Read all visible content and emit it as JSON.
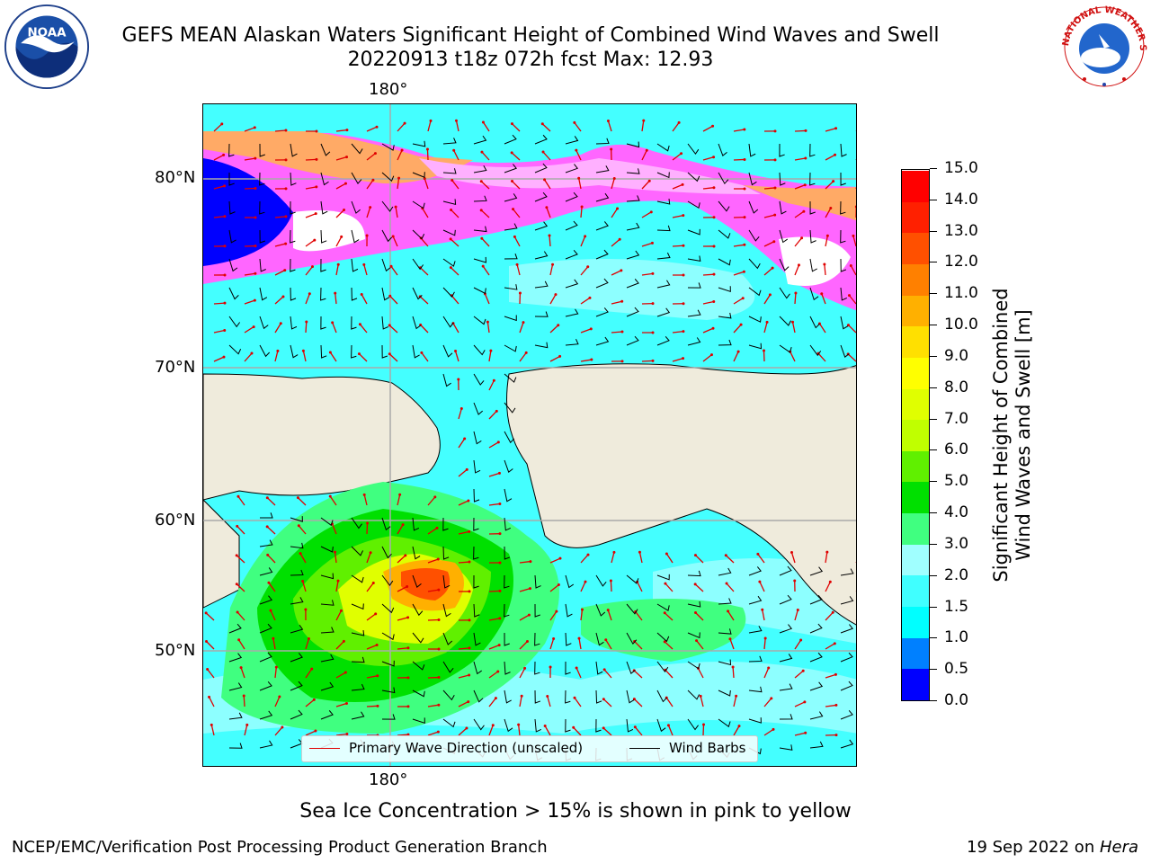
{
  "title": {
    "line1": "GEFS MEAN Alaskan Waters Significant Height of Combined Wind Waves and Swell",
    "line2": "20220913 t18z 072h fcst   Max: 12.93"
  },
  "logos": {
    "left": {
      "icon": "noaa-logo",
      "text": "NOAA"
    },
    "right": {
      "icon": "nws-logo",
      "text": "NATIONAL WEATHER SERVICE"
    }
  },
  "map": {
    "lon_label_top": "180°",
    "lon_label_bottom": "180°",
    "lat_labels": [
      "80°N",
      "70°N",
      "60°N",
      "50°N"
    ],
    "colors": {
      "land": "#efebdc",
      "sea_ice": "#ff66ff",
      "open_sea": "#44ffff",
      "wave_arrow": "#e00000",
      "wind_barb": "#000000"
    }
  },
  "colorbar": {
    "title_line1": "Significant Height of Combined",
    "title_line2": "Wind Waves and Swell [m]",
    "ticks": [
      "0.0",
      "0.5",
      "1.0",
      "1.5",
      "2.0",
      "3.0",
      "4.0",
      "5.0",
      "6.0",
      "7.0",
      "8.0",
      "9.0",
      "10.0",
      "11.0",
      "12.0",
      "13.0",
      "14.0",
      "15.0"
    ],
    "colors": [
      "#0000ff",
      "#0080ff",
      "#00ffff",
      "#40ffff",
      "#a0ffff",
      "#40ff80",
      "#00e000",
      "#60f000",
      "#c0ff00",
      "#e0ff00",
      "#ffff00",
      "#ffe000",
      "#ffb000",
      "#ff8000",
      "#ff5000",
      "#ff2000",
      "#ff0000"
    ]
  },
  "legend": {
    "wave_direction": "Primary Wave Direction (unscaled)",
    "wind_barbs": "Wind Barbs"
  },
  "subtitle": "Sea Ice Concentration > 15% is shown in pink to yellow",
  "footer": {
    "left": "NCEP/EMC/Verification Post Processing Product Generation Branch",
    "right_date": "19 Sep 2022 on ",
    "right_machine": "Hera"
  }
}
